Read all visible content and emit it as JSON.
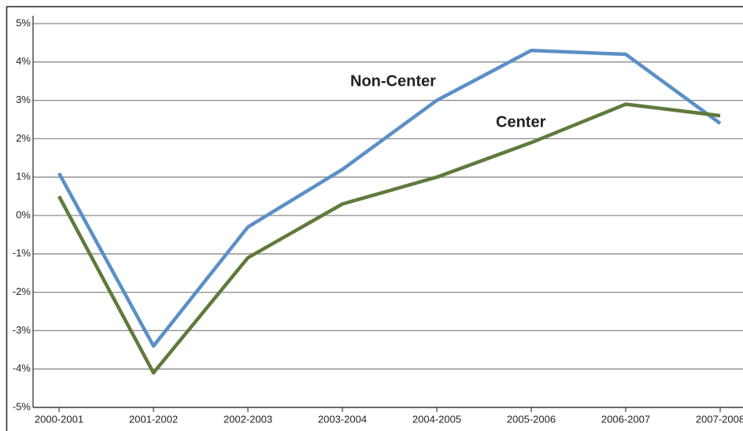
{
  "chart_data": {
    "type": "line",
    "categories": [
      "2000-2001",
      "2001-2002",
      "2002-2003",
      "2003-2004",
      "2004-2005",
      "2005-2006",
      "2006-2007",
      "2007-2008"
    ],
    "series": [
      {
        "name": "Non-Center",
        "color": "#5b8fc7",
        "values": [
          1.1,
          -3.4,
          -0.3,
          1.2,
          3.0,
          4.3,
          4.2,
          2.4
        ]
      },
      {
        "name": "Center",
        "color": "#5f7a3c",
        "values": [
          0.5,
          -4.1,
          -1.1,
          0.3,
          1.0,
          1.9,
          2.9,
          2.6
        ]
      }
    ],
    "ylim": [
      -5,
      5
    ],
    "yticks": [
      {
        "value": -5,
        "label": "-5%"
      },
      {
        "value": -4,
        "label": "-4%"
      },
      {
        "value": -3,
        "label": "-3%"
      },
      {
        "value": -2,
        "label": "-2%"
      },
      {
        "value": -1,
        "label": "-1%"
      },
      {
        "value": 0,
        "label": "0%"
      },
      {
        "value": 1,
        "label": "1%"
      },
      {
        "value": 2,
        "label": "2%"
      },
      {
        "value": 3,
        "label": "3%"
      },
      {
        "value": 4,
        "label": "4%"
      },
      {
        "value": 5,
        "label": "5%"
      }
    ],
    "grid": true
  }
}
